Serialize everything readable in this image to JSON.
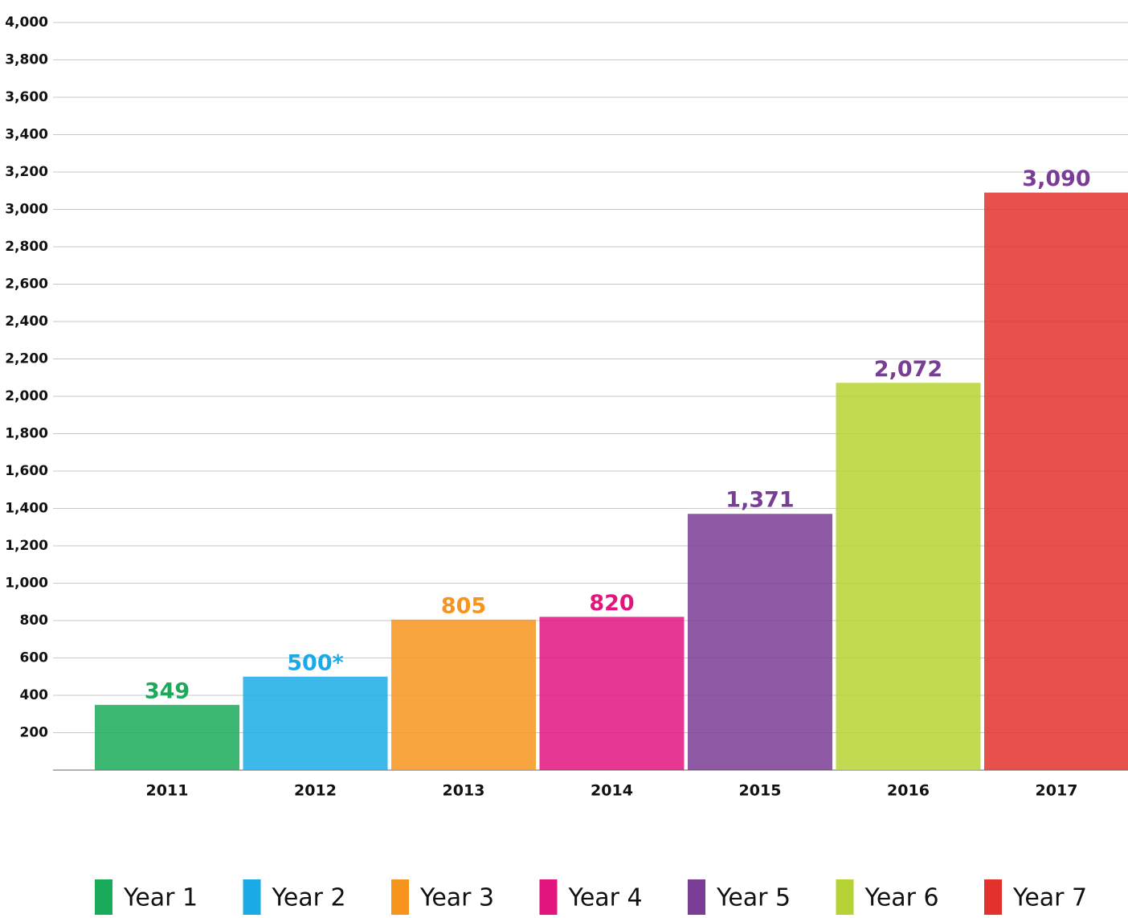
{
  "chart_data": {
    "type": "bar",
    "categories": [
      "2011",
      "2012",
      "2013",
      "2014",
      "2015",
      "2016",
      "2017"
    ],
    "values": [
      349,
      500,
      805,
      820,
      1371,
      2072,
      3090
    ],
    "value_labels": [
      "349",
      "500*",
      "805",
      "820",
      "1,371",
      "2,072",
      "3,090"
    ],
    "colors": [
      "#1aab5a",
      "#1aabe6",
      "#f7941d",
      "#e2157f",
      "#7a3d96",
      "#b5d334",
      "#e3322d"
    ],
    "value_label_colors": [
      "#1aab5a",
      "#1aabe6",
      "#f7941d",
      "#e2157f",
      "#7a3d96",
      "#7a3d96",
      "#7a3d96"
    ],
    "legend": [
      "Year 1",
      "Year 2",
      "Year 3",
      "Year 4",
      "Year 5",
      "Year 6",
      "Year 7"
    ],
    "ylim": [
      0,
      4000
    ],
    "yticks": [
      200,
      400,
      600,
      800,
      {
        "value": 1000,
        "label": "1,000"
      },
      {
        "value": 1200,
        "label": "1,200"
      },
      {
        "value": 1400,
        "label": "1,400"
      },
      {
        "value": 1600,
        "label": "1,600"
      },
      {
        "value": 1800,
        "label": "1,800"
      },
      {
        "value": 2000,
        "label": "2,000"
      },
      {
        "value": 2200,
        "label": "2,200"
      },
      {
        "value": 2400,
        "label": "2,400"
      },
      {
        "value": 2600,
        "label": "2,600"
      },
      {
        "value": 2800,
        "label": "2,800"
      },
      {
        "value": 3000,
        "label": "3,000"
      },
      {
        "value": 3200,
        "label": "3,200"
      },
      {
        "value": 3400,
        "label": "3,400"
      },
      {
        "value": 3600,
        "label": "3,600"
      },
      {
        "value": 3800,
        "label": "3,800"
      },
      {
        "value": 4000,
        "label": "4,000"
      }
    ],
    "grid": true
  }
}
